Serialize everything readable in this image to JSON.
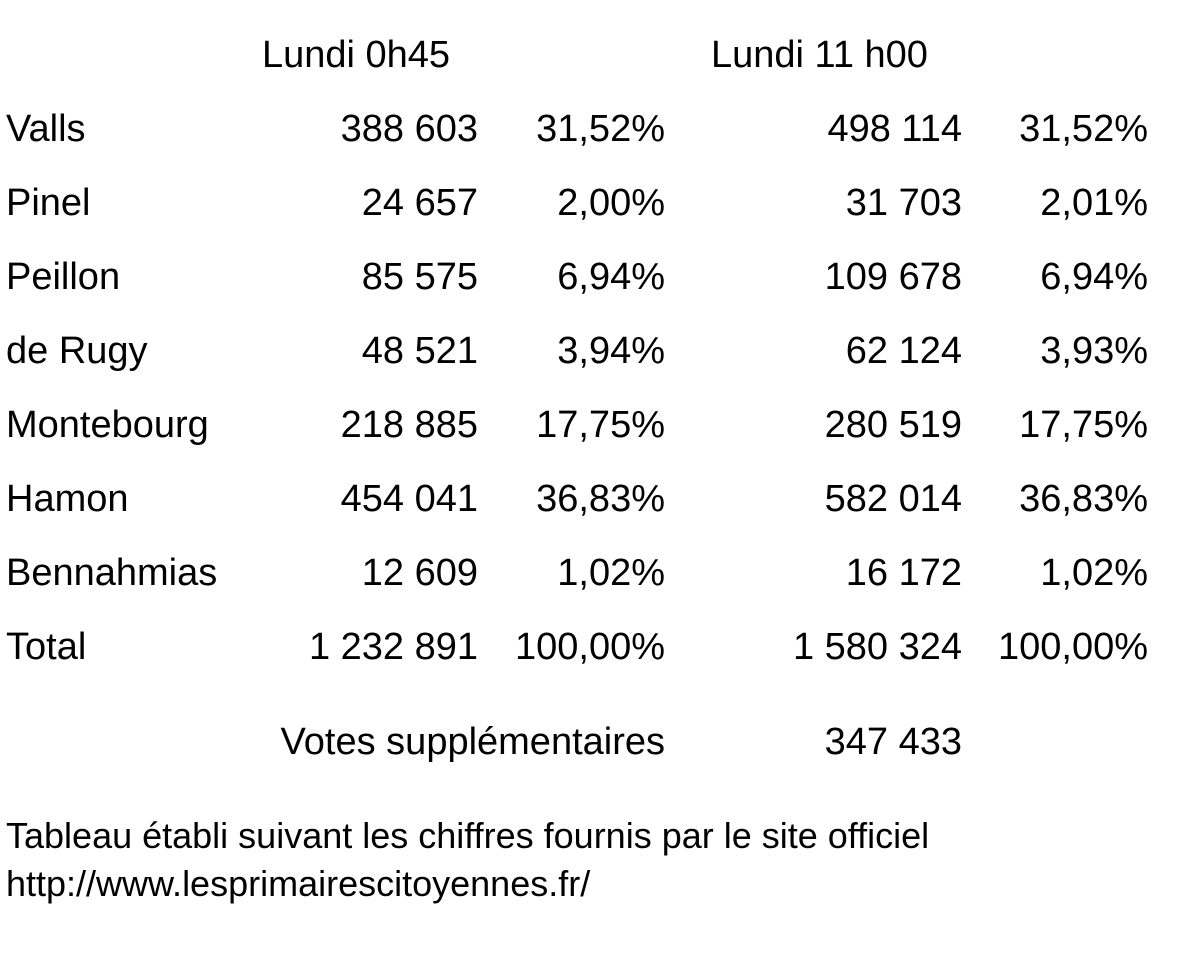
{
  "headers": {
    "col1": "Lundi 0h45",
    "col2": "Lundi 11 h00"
  },
  "rows": [
    {
      "name": "Valls",
      "v1": "388 603",
      "p1": "31,52%",
      "v2": "498 114",
      "p2": "31,52%"
    },
    {
      "name": "Pinel",
      "v1": "24 657",
      "p1": "2,00%",
      "v2": "31 703",
      "p2": "2,01%"
    },
    {
      "name": "Peillon",
      "v1": "85 575",
      "p1": "6,94%",
      "v2": "109 678",
      "p2": "6,94%"
    },
    {
      "name": "de Rugy",
      "v1": "48 521",
      "p1": "3,94%",
      "v2": "62 124",
      "p2": "3,93%"
    },
    {
      "name": "Montebourg",
      "v1": "218 885",
      "p1": "17,75%",
      "v2": "280 519",
      "p2": "17,75%"
    },
    {
      "name": "Hamon",
      "v1": "454 041",
      "p1": "36,83%",
      "v2": "582 014",
      "p2": "36,83%"
    },
    {
      "name": "Bennahmias",
      "v1": "12 609",
      "p1": "1,02%",
      "v2": "16 172",
      "p2": "1,02%"
    },
    {
      "name": "Total",
      "v1": "1 232 891",
      "p1": "100,00%",
      "v2": "1 580 324",
      "p2": "100,00%"
    }
  ],
  "extra": {
    "label": "Votes supplémentaires",
    "value": "347 433"
  },
  "note": {
    "line1": "Tableau établi suivant les chiffres fournis par le site officiel",
    "line2": "http://www.lesprimairescitoyennes.fr/"
  }
}
